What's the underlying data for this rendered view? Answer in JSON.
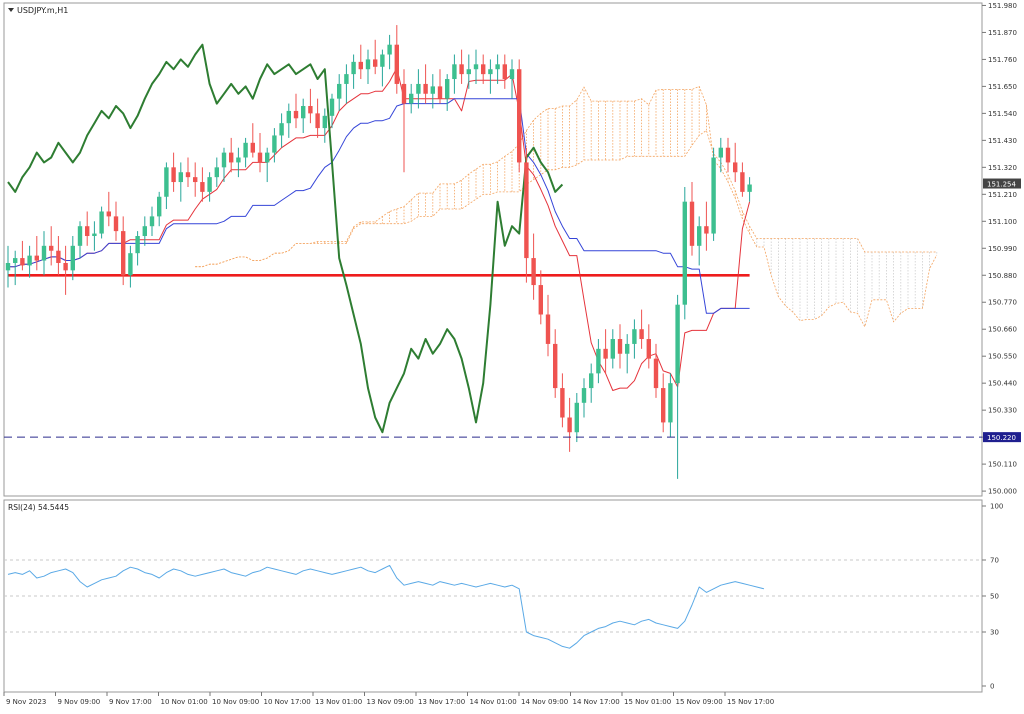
{
  "window": {
    "symbol_label": "USDJPY.m,H1",
    "rsi_label": "RSI(24) 54.5445"
  },
  "colors": {
    "background": "#ffffff",
    "bull": "#26a69a",
    "bull_body": "#3dbf8f",
    "bear": "#ef5350",
    "kijun": "#3545d8",
    "tenkan": "#e5333b",
    "chikou": "#2e7d32",
    "ma": "#ee1c1c",
    "cloud": "#f4a460",
    "cloud_future": "#cfcfcf",
    "rsi": "#5aa9e6",
    "level_line": "#2b2b8c",
    "price_badge": "#1f1f8f",
    "current_badge": "#444444"
  },
  "chart_data": [
    {
      "type": "candlestick",
      "title": "USDJPY.m,H1",
      "timeframe": "H1",
      "y_ticks": [
        "151.980",
        "151.870",
        "151.760",
        "151.650",
        "151.540",
        "151.430",
        "151.320",
        "151.210",
        "151.100",
        "150.990",
        "150.880",
        "150.770",
        "150.660",
        "150.550",
        "150.440",
        "150.330",
        "150.220",
        "150.110",
        "150.000"
      ],
      "ylim": [
        149.98,
        151.99
      ],
      "x_tick_labels": [
        "9 Nov 2023",
        "9 Nov 09:00",
        "9 Nov 17:00",
        "10 Nov 01:00",
        "10 Nov 09:00",
        "10 Nov 17:00",
        "13 Nov 01:00",
        "13 Nov 09:00",
        "13 Nov 17:00",
        "14 Nov 01:00",
        "14 Nov 09:00",
        "14 Nov 17:00",
        "15 Nov 01:00",
        "15 Nov 09:00",
        "15 Nov 17:00"
      ],
      "current_price": "151.254",
      "horizontal_level": "150.220",
      "indicators": [
        "Ichimoku Kinko Hyo",
        "Moving Average (red)"
      ],
      "candles": [
        {
          "o": 150.9,
          "h": 151.0,
          "l": 150.83,
          "c": 150.93
        },
        {
          "o": 150.93,
          "h": 150.98,
          "l": 150.84,
          "c": 150.95
        },
        {
          "o": 150.95,
          "h": 151.02,
          "l": 150.9,
          "c": 150.92
        },
        {
          "o": 150.92,
          "h": 151.0,
          "l": 150.87,
          "c": 150.96
        },
        {
          "o": 150.96,
          "h": 151.04,
          "l": 150.9,
          "c": 150.94
        },
        {
          "o": 150.94,
          "h": 151.06,
          "l": 150.88,
          "c": 151.0
        },
        {
          "o": 151.0,
          "h": 151.08,
          "l": 150.92,
          "c": 150.98
        },
        {
          "o": 150.98,
          "h": 151.04,
          "l": 150.88,
          "c": 150.93
        },
        {
          "o": 150.93,
          "h": 151.0,
          "l": 150.8,
          "c": 150.9
        },
        {
          "o": 150.9,
          "h": 151.04,
          "l": 150.86,
          "c": 151.0
        },
        {
          "o": 151.0,
          "h": 151.1,
          "l": 150.95,
          "c": 151.08
        },
        {
          "o": 151.08,
          "h": 151.14,
          "l": 151.0,
          "c": 151.04
        },
        {
          "o": 151.04,
          "h": 151.1,
          "l": 150.98,
          "c": 151.05
        },
        {
          "o": 151.05,
          "h": 151.16,
          "l": 151.03,
          "c": 151.14
        },
        {
          "o": 151.14,
          "h": 151.22,
          "l": 151.08,
          "c": 151.12
        },
        {
          "o": 151.12,
          "h": 151.18,
          "l": 151.02,
          "c": 151.06
        },
        {
          "o": 151.06,
          "h": 151.12,
          "l": 150.84,
          "c": 150.88
        },
        {
          "o": 150.88,
          "h": 151.0,
          "l": 150.83,
          "c": 150.97
        },
        {
          "o": 150.97,
          "h": 151.06,
          "l": 150.92,
          "c": 151.04
        },
        {
          "o": 151.04,
          "h": 151.12,
          "l": 151.0,
          "c": 151.08
        },
        {
          "o": 151.08,
          "h": 151.16,
          "l": 151.04,
          "c": 151.12
        },
        {
          "o": 151.12,
          "h": 151.22,
          "l": 151.08,
          "c": 151.2
        },
        {
          "o": 151.2,
          "h": 151.34,
          "l": 151.15,
          "c": 151.32
        },
        {
          "o": 151.32,
          "h": 151.38,
          "l": 151.22,
          "c": 151.26
        },
        {
          "o": 151.26,
          "h": 151.34,
          "l": 151.18,
          "c": 151.3
        },
        {
          "o": 151.3,
          "h": 151.36,
          "l": 151.24,
          "c": 151.28
        },
        {
          "o": 151.28,
          "h": 151.34,
          "l": 151.2,
          "c": 151.26
        },
        {
          "o": 151.26,
          "h": 151.32,
          "l": 151.18,
          "c": 151.22
        },
        {
          "o": 151.22,
          "h": 151.3,
          "l": 151.18,
          "c": 151.28
        },
        {
          "o": 151.28,
          "h": 151.36,
          "l": 151.24,
          "c": 151.32
        },
        {
          "o": 151.32,
          "h": 151.4,
          "l": 151.26,
          "c": 151.38
        },
        {
          "o": 151.38,
          "h": 151.44,
          "l": 151.3,
          "c": 151.34
        },
        {
          "o": 151.34,
          "h": 151.4,
          "l": 151.28,
          "c": 151.36
        },
        {
          "o": 151.36,
          "h": 151.44,
          "l": 151.32,
          "c": 151.42
        },
        {
          "o": 151.42,
          "h": 151.5,
          "l": 151.36,
          "c": 151.38
        },
        {
          "o": 151.38,
          "h": 151.46,
          "l": 151.3,
          "c": 151.34
        },
        {
          "o": 151.34,
          "h": 151.4,
          "l": 151.26,
          "c": 151.38
        },
        {
          "o": 151.38,
          "h": 151.48,
          "l": 151.34,
          "c": 151.45
        },
        {
          "o": 151.45,
          "h": 151.54,
          "l": 151.4,
          "c": 151.5
        },
        {
          "o": 151.5,
          "h": 151.58,
          "l": 151.44,
          "c": 151.55
        },
        {
          "o": 151.55,
          "h": 151.62,
          "l": 151.48,
          "c": 151.52
        },
        {
          "o": 151.52,
          "h": 151.6,
          "l": 151.46,
          "c": 151.57
        },
        {
          "o": 151.57,
          "h": 151.64,
          "l": 151.5,
          "c": 151.54
        },
        {
          "o": 151.54,
          "h": 151.6,
          "l": 151.44,
          "c": 151.48
        },
        {
          "o": 151.48,
          "h": 151.56,
          "l": 151.42,
          "c": 151.53
        },
        {
          "o": 151.53,
          "h": 151.62,
          "l": 151.48,
          "c": 151.6
        },
        {
          "o": 151.6,
          "h": 151.7,
          "l": 151.55,
          "c": 151.66
        },
        {
          "o": 151.66,
          "h": 151.74,
          "l": 151.58,
          "c": 151.7
        },
        {
          "o": 151.7,
          "h": 151.78,
          "l": 151.64,
          "c": 151.75
        },
        {
          "o": 151.75,
          "h": 151.82,
          "l": 151.68,
          "c": 151.72
        },
        {
          "o": 151.72,
          "h": 151.8,
          "l": 151.66,
          "c": 151.76
        },
        {
          "o": 151.76,
          "h": 151.84,
          "l": 151.7,
          "c": 151.73
        },
        {
          "o": 151.73,
          "h": 151.8,
          "l": 151.65,
          "c": 151.78
        },
        {
          "o": 151.78,
          "h": 151.86,
          "l": 151.72,
          "c": 151.82
        },
        {
          "o": 151.82,
          "h": 151.9,
          "l": 151.62,
          "c": 151.66
        },
        {
          "o": 151.66,
          "h": 151.72,
          "l": 151.3,
          "c": 151.58
        },
        {
          "o": 151.58,
          "h": 151.66,
          "l": 151.54,
          "c": 151.62
        },
        {
          "o": 151.62,
          "h": 151.72,
          "l": 151.56,
          "c": 151.66
        },
        {
          "o": 151.66,
          "h": 151.74,
          "l": 151.58,
          "c": 151.62
        },
        {
          "o": 151.62,
          "h": 151.7,
          "l": 151.56,
          "c": 151.65
        },
        {
          "o": 151.65,
          "h": 151.72,
          "l": 151.58,
          "c": 151.6
        },
        {
          "o": 151.6,
          "h": 151.7,
          "l": 151.55,
          "c": 151.68
        },
        {
          "o": 151.68,
          "h": 151.78,
          "l": 151.62,
          "c": 151.74
        },
        {
          "o": 151.74,
          "h": 151.8,
          "l": 151.66,
          "c": 151.7
        },
        {
          "o": 151.7,
          "h": 151.78,
          "l": 151.64,
          "c": 151.72
        },
        {
          "o": 151.72,
          "h": 151.8,
          "l": 151.66,
          "c": 151.74
        },
        {
          "o": 151.74,
          "h": 151.78,
          "l": 151.66,
          "c": 151.7
        },
        {
          "o": 151.7,
          "h": 151.76,
          "l": 151.62,
          "c": 151.72
        },
        {
          "o": 151.72,
          "h": 151.78,
          "l": 151.66,
          "c": 151.74
        },
        {
          "o": 151.74,
          "h": 151.78,
          "l": 151.64,
          "c": 151.68
        },
        {
          "o": 151.68,
          "h": 151.76,
          "l": 151.6,
          "c": 151.72
        },
        {
          "o": 151.72,
          "h": 151.76,
          "l": 151.3,
          "c": 151.34
        },
        {
          "o": 151.34,
          "h": 151.4,
          "l": 150.85,
          "c": 150.95
        },
        {
          "o": 150.95,
          "h": 151.05,
          "l": 150.78,
          "c": 150.84
        },
        {
          "o": 150.84,
          "h": 150.9,
          "l": 150.68,
          "c": 150.72
        },
        {
          "o": 150.72,
          "h": 150.8,
          "l": 150.55,
          "c": 150.6
        },
        {
          "o": 150.6,
          "h": 150.66,
          "l": 150.38,
          "c": 150.42
        },
        {
          "o": 150.42,
          "h": 150.48,
          "l": 150.26,
          "c": 150.3
        },
        {
          "o": 150.3,
          "h": 150.38,
          "l": 150.16,
          "c": 150.24
        },
        {
          "o": 150.24,
          "h": 150.4,
          "l": 150.2,
          "c": 150.36
        },
        {
          "o": 150.36,
          "h": 150.46,
          "l": 150.3,
          "c": 150.42
        },
        {
          "o": 150.42,
          "h": 150.52,
          "l": 150.36,
          "c": 150.48
        },
        {
          "o": 150.48,
          "h": 150.62,
          "l": 150.44,
          "c": 150.58
        },
        {
          "o": 150.58,
          "h": 150.66,
          "l": 150.48,
          "c": 150.54
        },
        {
          "o": 150.54,
          "h": 150.66,
          "l": 150.5,
          "c": 150.62
        },
        {
          "o": 150.62,
          "h": 150.68,
          "l": 150.5,
          "c": 150.56
        },
        {
          "o": 150.56,
          "h": 150.64,
          "l": 150.48,
          "c": 150.6
        },
        {
          "o": 150.6,
          "h": 150.7,
          "l": 150.54,
          "c": 150.66
        },
        {
          "o": 150.66,
          "h": 150.74,
          "l": 150.58,
          "c": 150.62
        },
        {
          "o": 150.62,
          "h": 150.68,
          "l": 150.5,
          "c": 150.54
        },
        {
          "o": 150.54,
          "h": 150.6,
          "l": 150.38,
          "c": 150.42
        },
        {
          "o": 150.42,
          "h": 150.48,
          "l": 150.24,
          "c": 150.28
        },
        {
          "o": 150.28,
          "h": 150.48,
          "l": 150.22,
          "c": 150.44
        },
        {
          "o": 150.44,
          "h": 150.8,
          "l": 150.05,
          "c": 150.76
        },
        {
          "o": 150.76,
          "h": 151.24,
          "l": 150.7,
          "c": 151.18
        },
        {
          "o": 151.18,
          "h": 151.26,
          "l": 150.96,
          "c": 151.0
        },
        {
          "o": 151.0,
          "h": 151.12,
          "l": 150.92,
          "c": 151.08
        },
        {
          "o": 151.08,
          "h": 151.18,
          "l": 150.98,
          "c": 151.05
        },
        {
          "o": 151.05,
          "h": 151.4,
          "l": 151.02,
          "c": 151.36
        },
        {
          "o": 151.36,
          "h": 151.44,
          "l": 151.3,
          "c": 151.4
        },
        {
          "o": 151.4,
          "h": 151.44,
          "l": 151.3,
          "c": 151.34
        },
        {
          "o": 151.34,
          "h": 151.42,
          "l": 151.26,
          "c": 151.3
        },
        {
          "o": 151.3,
          "h": 151.34,
          "l": 151.2,
          "c": 151.22
        },
        {
          "o": 151.22,
          "h": 151.28,
          "l": 151.18,
          "c": 151.25
        }
      ]
    },
    {
      "type": "line",
      "title": "RSI(24) 54.5445",
      "ylim": [
        0,
        100
      ],
      "y_ticks": [
        "100",
        "70",
        "50",
        "30",
        "0"
      ],
      "levels": [
        70,
        50,
        30
      ],
      "current_value": 54.5445,
      "series": [
        {
          "values": [
            62,
            63,
            62,
            64,
            60,
            61,
            63,
            64,
            65,
            63,
            58,
            55,
            57,
            59,
            60,
            61,
            64,
            66,
            65,
            63,
            62,
            60,
            63,
            65,
            64,
            62,
            61,
            62,
            63,
            64,
            65,
            63,
            62,
            61,
            63,
            64,
            66,
            65,
            64,
            63,
            62,
            64,
            65,
            64,
            63,
            62,
            63,
            64,
            65,
            66,
            64,
            63,
            65,
            67,
            60,
            56,
            57,
            58,
            57,
            56,
            58,
            57,
            56,
            57,
            56,
            55,
            56,
            57,
            56,
            55,
            56,
            54,
            30,
            28,
            27,
            26,
            24,
            22,
            21,
            24,
            28,
            30,
            32,
            33,
            35,
            36,
            35,
            34,
            36,
            37,
            35,
            34,
            33,
            32,
            36,
            45,
            55,
            52,
            54,
            56,
            57,
            58,
            57,
            56,
            55,
            54
          ]
        }
      ]
    }
  ]
}
